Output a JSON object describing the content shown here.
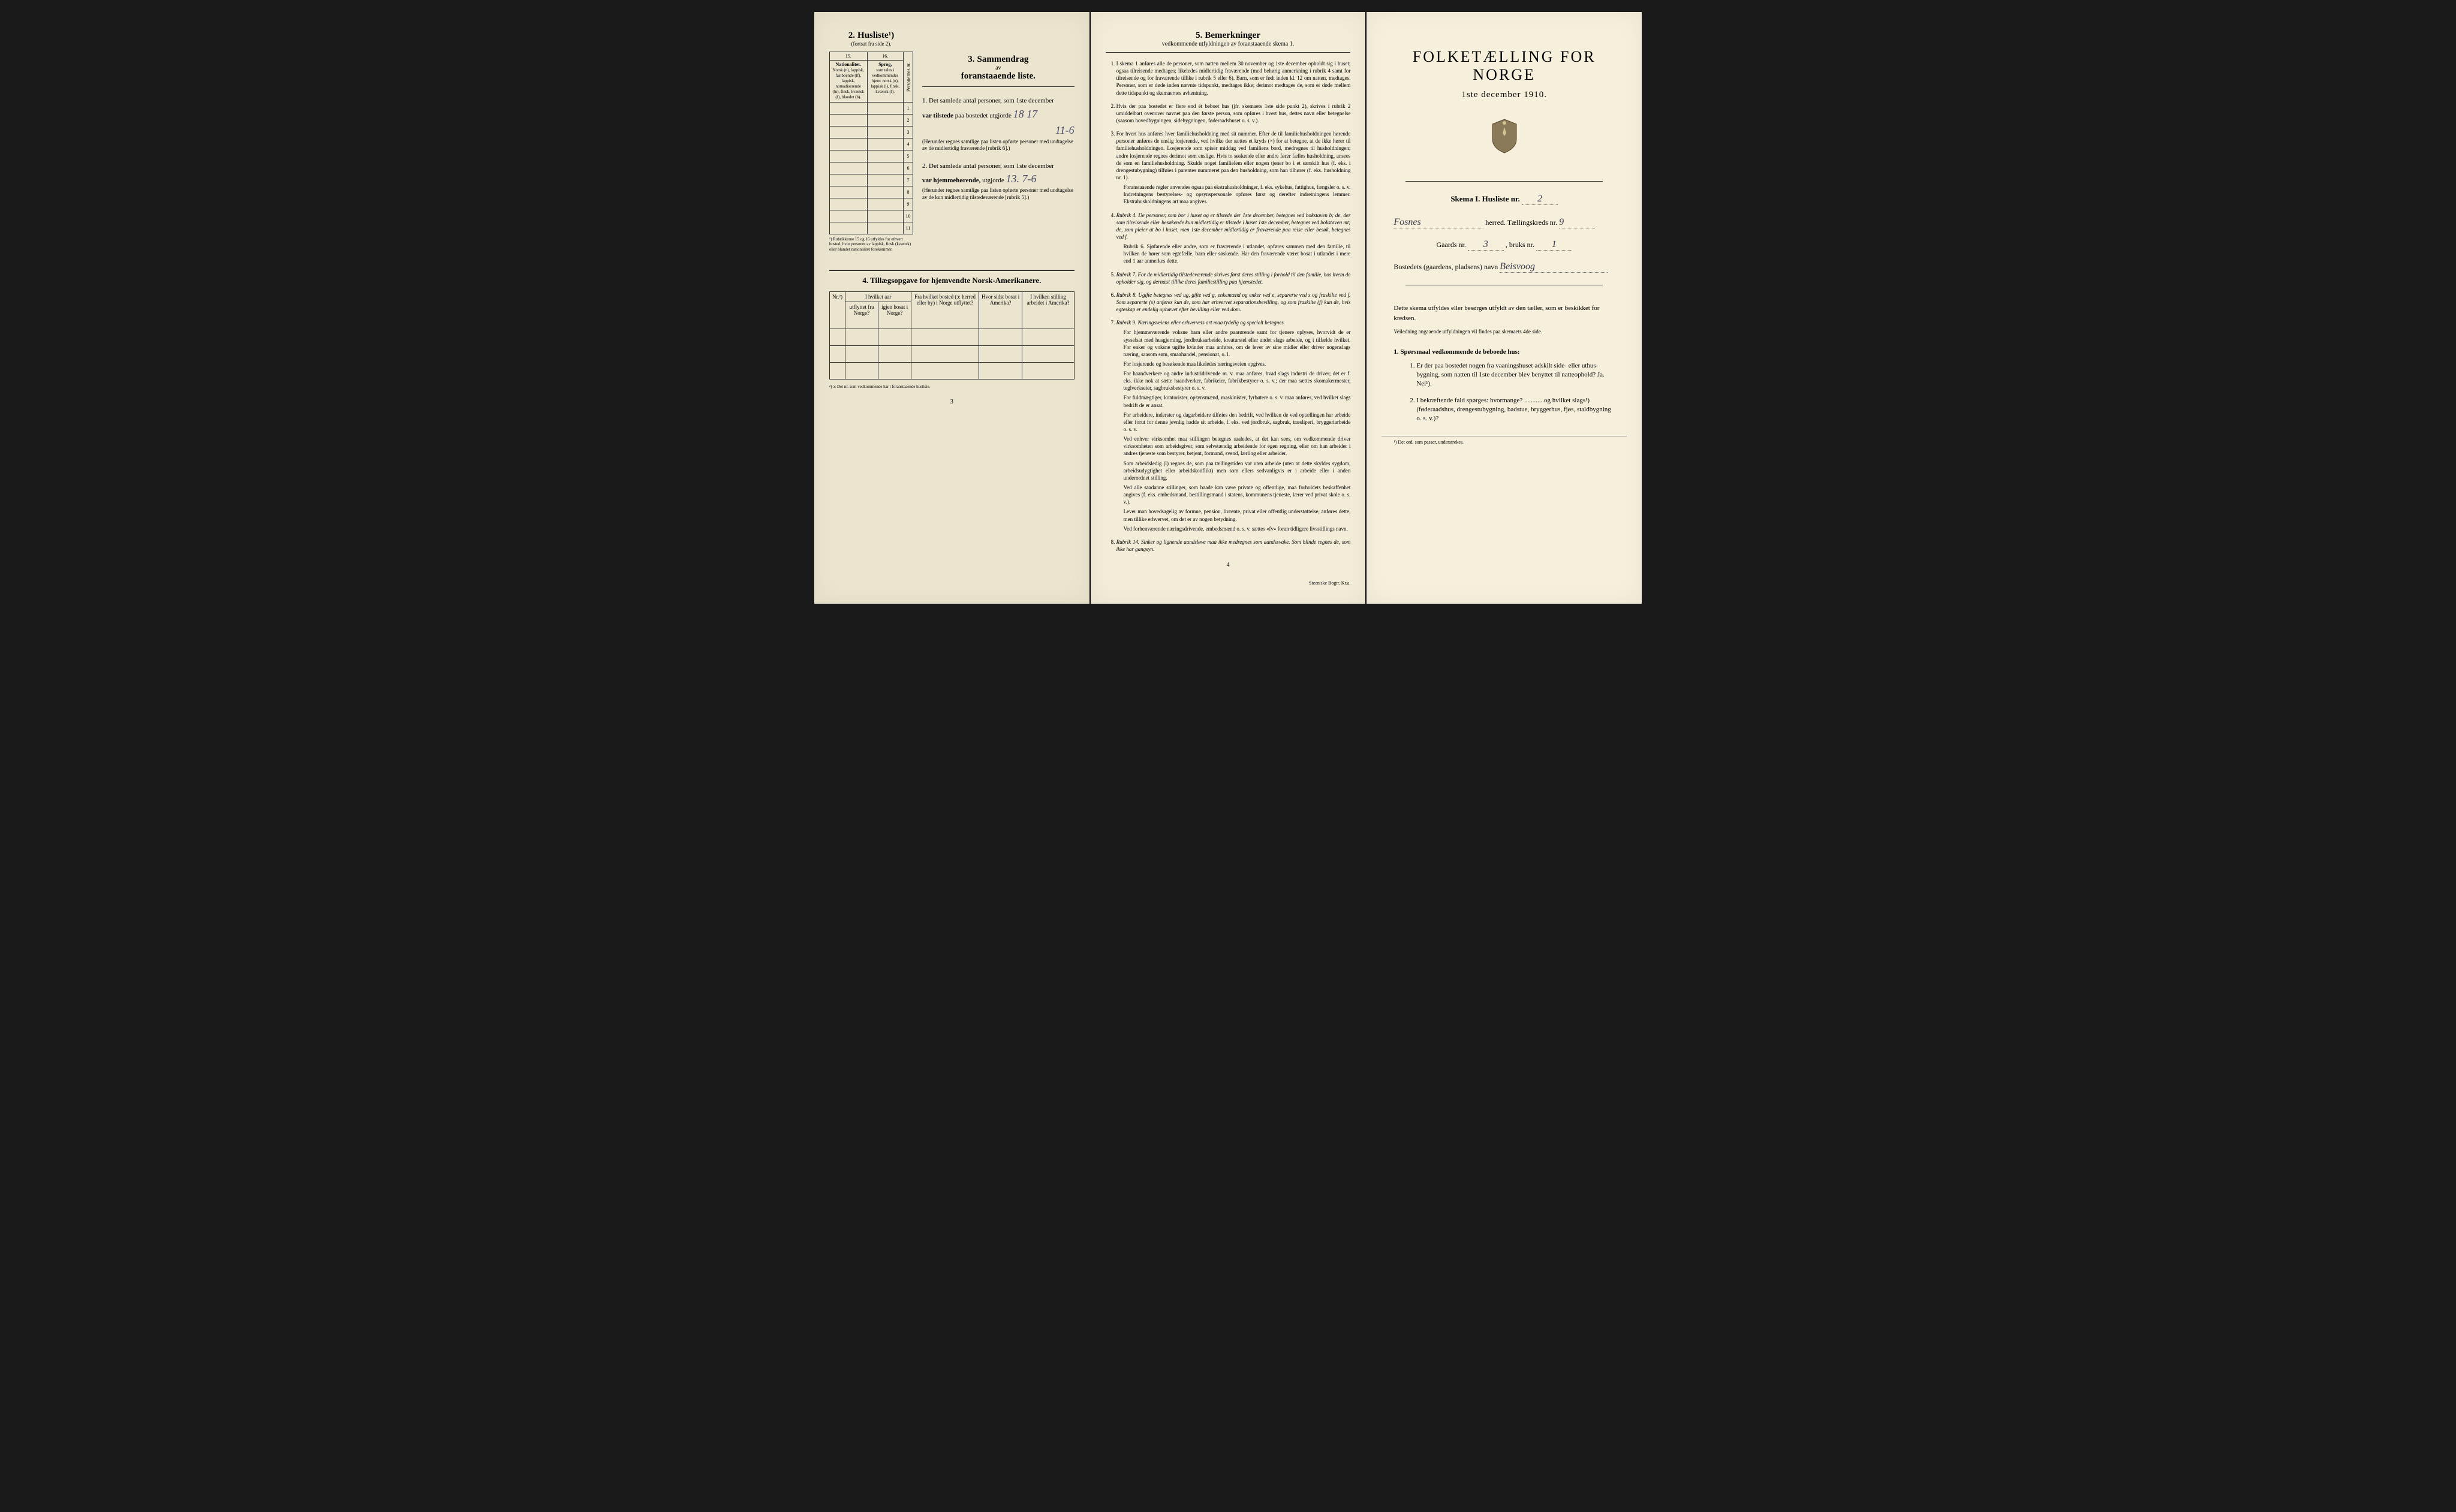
{
  "page1": {
    "husliste": {
      "num": "2.",
      "title": "Husliste¹)",
      "sub": "(fortsat fra side 2)."
    },
    "nat_table": {
      "col15": "15.",
      "col16": "16.",
      "head_nat": "Nationalitet.",
      "head_sprog": "Sprog,",
      "nat_desc": "Norsk (n), lappisk, fastboende (lf), lappisk, nomadiserende (ln), finsk, kvænsk (f), blandet (b).",
      "sprog_desc": "som tales i vedkommendes hjem: norsk (n), lappisk (l), finsk, kvænsk (f).",
      "pers_col": "Personernes nr.",
      "rows": [
        "1",
        "2",
        "3",
        "4",
        "5",
        "6",
        "7",
        "8",
        "9",
        "10",
        "11"
      ],
      "footnote": "¹) Rubrikkerne 15 og 16 utfyldes for ethvert bosted, hvor personer av lappisk, finsk (kvænsk) eller blandet nationalitet forekommer."
    },
    "sammen": {
      "num": "3.",
      "title": "Sammendrag",
      "sub": "av",
      "sub2": "foranstaaende liste.",
      "item1_pre": "1. Det samlede antal personer, som 1ste december",
      "item1_label": "var tilstede",
      "item1_post": "paa bostedet utgjorde",
      "item1_val": "18 17",
      "item1_val2": "11-6",
      "item1_note": "(Herunder regnes samtlige paa listen opførte personer med undtagelse av de midlertidig fraværende [rubrik 6].)",
      "item2_pre": "2. Det samlede antal personer, som 1ste december",
      "item2_label": "var hjemmehørende,",
      "item2_post": "utgjorde",
      "item2_val": "13. 7-6",
      "item2_note": "(Herunder regnes samtlige paa listen opførte personer med undtagelse av de kun midlertidig tilstedeværende [rubrik 5].)"
    },
    "sec4": {
      "num": "4.",
      "title": "Tillægsopgave for hjemvendte Norsk-Amerikanere.",
      "cols": [
        "Nr.²)",
        "I hvilket aar",
        "Fra hvilket bosted (ɔ: herred eller by) i Norge utflyttet?",
        "Hvor sidst bosat i Amerika?",
        "I hvilken stilling arbeidet i Amerika?"
      ],
      "subcols": [
        "utflyttet fra Norge?",
        "igjen bosat i Norge?"
      ],
      "footnote": "²) ɔ: Det nr. som vedkommende har i foranstaaende husliste.",
      "pagenum": "3"
    }
  },
  "page2": {
    "header": {
      "num": "5.",
      "title": "Bemerkninger",
      "sub": "vedkommende utfyldningen av foranstaaende skema 1."
    },
    "items": [
      "I skema 1 anføres alle de personer, som natten mellem 30 november og 1ste december opholdt sig i huset; ogsaa tilreisende medtages; likeledes midlertidig fraværende (med behørig anmerkning i rubrik 4 samt for tilreisende og for fraværende tillike i rubrik 5 eller 6). Barn, som er født inden kl. 12 om natten, medtages. Personer, som er døde inden nævnte tidspunkt, medtages ikke; derimot medtages de, som er døde mellem dette tidspunkt og skemaernes avhentning.",
      "Hvis der paa bostedet er flere end ét beboet hus (jfr. skemaets 1ste side punkt 2), skrives i rubrik 2 umiddelbart ovenover navnet paa den første person, som opføres i hvert hus, dettes navn eller betegnelse (saasom hovedbygningen, sidebygningen, føderaadshuset o. s. v.).",
      "For hvert hus anføres hver familiehusholdning med sit nummer. Efter de til familiehusholdningen hørende personer anføres de enslig losjerende, ved hvilke der sættes et kryds (×) for at betegne, at de ikke hører til familiehusholdningen. Losjerende som spiser middag ved familiens bord, medregnes til husholdningen; andre losjerende regnes derimot som enslige. Hvis to søskende eller andre fører fælles husholdning, ansees de som en familiehusholdning. Skulde noget familielem eller nogen tjener bo i et særskilt hus (f. eks. i drengestubygning) tilføies i parentes nummeret paa den husholdning, som han tilhører (f. eks. husholdning nr. 1).",
      "Rubrik 4. De personer, som bor i huset og er tilstede der 1ste december, betegnes ved bokstaven b; de, der som tilreisende eller besøkende kun midlertidig er tilstede i huset 1ste december, betegnes ved bokstaven mt; de, som pleier at bo i huset, men 1ste december midlertidig er fraværende paa reise eller besøk, betegnes ved f.",
      "Rubrik 7. For de midlertidig tilstedeværende skrives først deres stilling i forhold til den familie, hos hvem de opholder sig, og dernæst tillike deres familiestilling paa hjemstedet.",
      "Rubrik 8. Ugifte betegnes ved ug, gifte ved g, enkemænd og enker ved e, separerte ved s og fraskilte ved f. Som separerte (s) anføres kun de, som har erhvervet separationsbevilling, og som fraskilte (f) kun de, hvis egteskap er endelig ophævet efter bevilling eller ved dom.",
      "Rubrik 9. Næringsveiens eller erhvervets art maa tydelig og specielt betegnes.",
      "Rubrik 14. Sinker og lignende aandsløve maa ikke medregnes som aandssvake. Som blinde regnes de, som ikke har gangsyn."
    ],
    "item3_extra": "Foranstaaende regler anvendes ogsaa paa ekstrahusholdninger, f. eks. sykehus, fattighus, fængsler o. s. v. Indretningens bestyrelses- og opsynspersonale opføres først og derefter indretningens lemmer. Ekstrahusholdningens art maa angives.",
    "item4_extra": "Rubrik 6. Sjøfarende eller andre, som er fraværende i utlandet, opføres sammen med den familie, til hvilken de hører som egtefælle, barn eller søskende. Har den fraværende været bosat i utlandet i mere end 1 aar anmerkes dette.",
    "item7_paras": [
      "For hjemmeværende voksne barn eller andre paarørende samt for tjenere oplyses, hvorvidt de er sysselsat med husgjerning, jordbruksarbeide, kreaturstel eller andet slags arbeide, og i tilfælde hvilket. For enker og voksne ugifte kvinder maa anføres, om de lever av sine midler eller driver nogenslags næring, saasom søm, smaahandel, pensionat, o. l.",
      "For losjerende og besøkende maa likeledes næringsveien opgives.",
      "For haandverkere og andre industridrivende m. v. maa anføres, hvad slags industri de driver; det er f. eks. ikke nok at sætte haandverker, fabrikeier, fabrikbestyrer o. s. v.; der maa sættes skomakermester, teglverkseier, sagbruksbestyrer o. s. v.",
      "For fuldmægtiger, kontorister, opsynsmænd, maskinister, fyrbøtere o. s. v. maa anføres, ved hvilket slags bedrift de er ansat.",
      "For arbeidere, inderster og dagarbeidere tilføies den bedrift, ved hvilken de ved optællingen har arbeide eller forut for denne jevnlig hadde sit arbeide, f. eks. ved jordbruk, sagbruk, træsliperi, bryggeriarbeide o. s. v.",
      "Ved enhver virksomhet maa stillingen betegnes saaledes, at det kan sees, om vedkommende driver virksomheten som arbeidsgiver, som selvstændig arbeidende for egen regning, eller om han arbeider i andres tjeneste som bestyrer, betjent, formand, svend, lærling eller arbeider.",
      "Som arbeidsledig (l) regnes de, som paa tællingstiden var uten arbeide (uten at dette skyldes sygdom, arbeidsudygtighet eller arbeidskonflikt) men som ellers sedvanligvis er i arbeide eller i anden underordnet stilling.",
      "Ved alle saadanne stillinger, som baade kan være private og offentlige, maa forholdets beskaffenhet angives (f. eks. embedsmand, bestillingsmand i statens, kommunens tjeneste, lærer ved privat skole o. s. v.).",
      "Lever man hovedsagelig av formue, pension, livrente, privat eller offentlig understøttelse, anføres dette, men tillike erhvervet, om det er av nogen betydning.",
      "Ved forhenværende næringsdrivende, embedsmænd o. s. v. sættes «fv» foran tidligere livsstillings navn."
    ],
    "pagenum": "4",
    "printer": "Steen'ske Bogtr. Kr.a."
  },
  "page3": {
    "title": "FOLKETÆLLING FOR NORGE",
    "date": "1ste december 1910.",
    "skema": "Skema I.  Husliste nr.",
    "skema_val": "2",
    "herred_val": "Fosnes",
    "herred_label": "herred.  Tællingskreds nr.",
    "kreds_val": "9",
    "gaard_label": "Gaards nr.",
    "gaard_val": "3",
    "bruk_label": ", bruks nr.",
    "bruk_val": "1",
    "bosted_label": "Bostedets (gaardens, pladsens) navn",
    "bosted_val": "Beisvoog",
    "instruct": "Dette skema utfyldes eller besørges utfyldt av den tæller, som er beskikket for kredsen.",
    "instruct_sub": "Veiledning angaaende utfyldningen vil findes paa skemaets 4de side.",
    "q_head": "1. Spørsmaal vedkommende de beboede hus:",
    "q1": "Er der paa bostedet nogen fra vaaningshuset adskilt side- eller uthus-bygning, som natten til 1ste december blev benyttet til natteophold?   Ja.   Nei¹).",
    "q2": "I bekræftende fald spørges: hvormange? ............og hvilket slags¹) (føderaadshus, drengestubygning, badstue, bryggerhus, fjøs, staldbygning o. s. v.)?",
    "footnote": "¹) Det ord, som passer, understrekes."
  }
}
